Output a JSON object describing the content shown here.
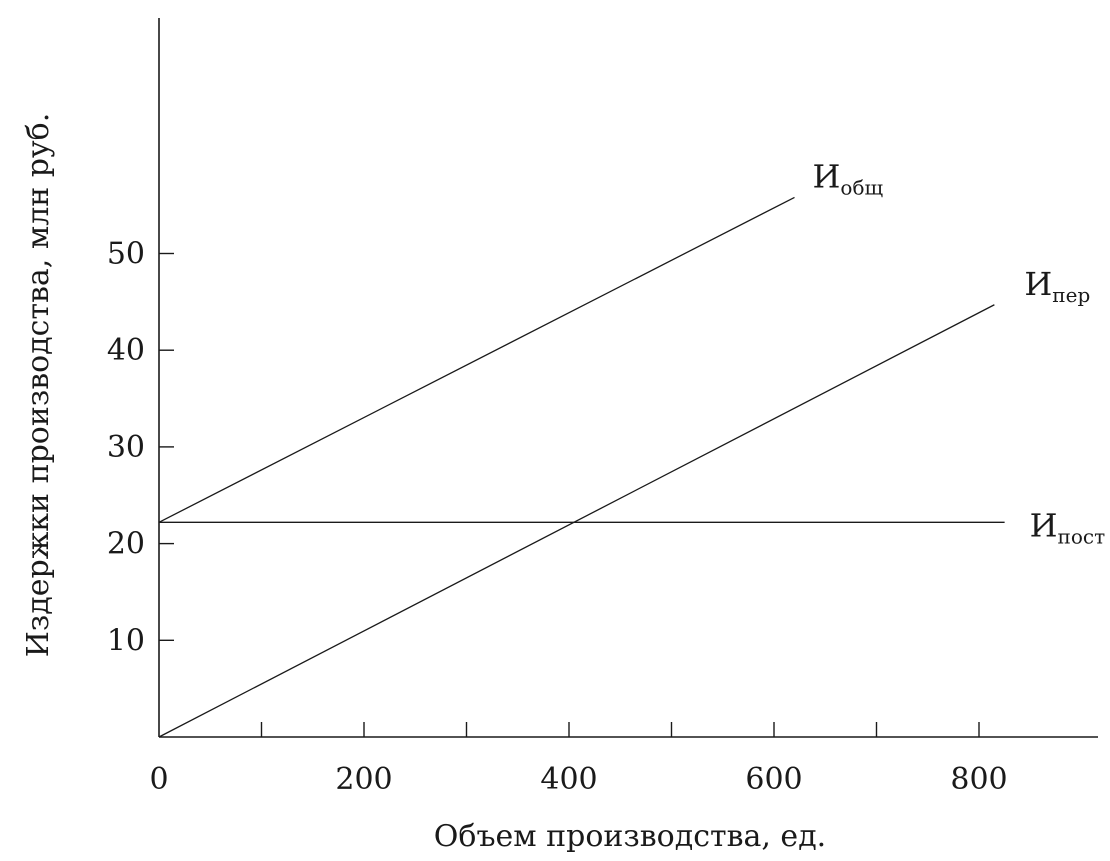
{
  "chart_data": {
    "type": "line",
    "title": "",
    "xlabel": "Объем производства, ед.",
    "ylabel": "Издержки производства, млн руб.",
    "xlim": [
      0,
      920
    ],
    "ylim": [
      0,
      74
    ],
    "x_ticks": [
      0,
      100,
      200,
      300,
      400,
      500,
      600,
      700,
      800
    ],
    "x_tick_labels": [
      "0",
      "",
      "200",
      "",
      "400",
      "",
      "600",
      "",
      "800"
    ],
    "y_ticks": [
      10,
      20,
      30,
      40,
      50
    ],
    "y_tick_labels": [
      "10",
      "20",
      "30",
      "40",
      "50"
    ],
    "grid": false,
    "legend": "none",
    "series": [
      {
        "name": "общ",
        "label_main": "И",
        "label_sub": "общ",
        "x": [
          0,
          620
        ],
        "y": [
          22.2,
          55.8
        ]
      },
      {
        "name": "пер",
        "label_main": "И",
        "label_sub": "пер",
        "x": [
          0,
          815
        ],
        "y": [
          0,
          44.7
        ]
      },
      {
        "name": "пост",
        "label_main": "И",
        "label_sub": "пост",
        "x": [
          0,
          825
        ],
        "y": [
          22.2,
          22.2
        ]
      }
    ]
  }
}
